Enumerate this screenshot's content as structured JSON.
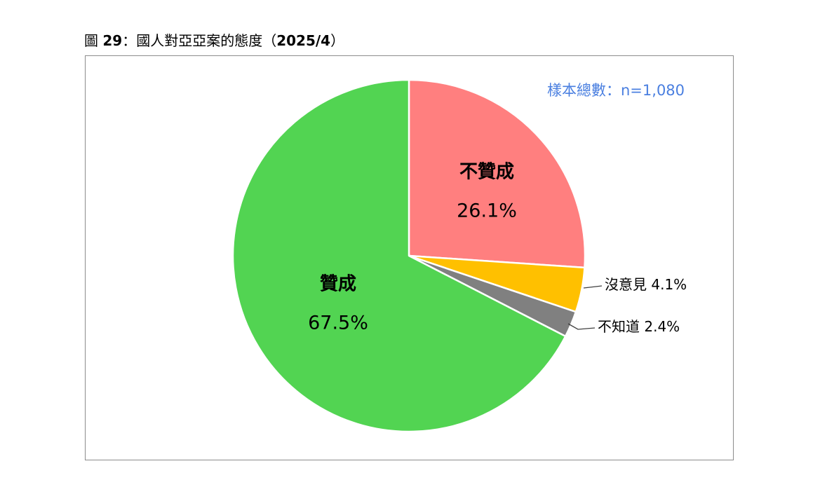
{
  "title": {
    "prefix": "圖",
    "number": "29",
    "colon": "：",
    "text": "國人對亞亞案的態度（",
    "date": "2025/4",
    "close": "）"
  },
  "sample_note": "樣本總數：n=1,080",
  "colors": {
    "approve": "#52d452",
    "disapprove": "#ff7f7f",
    "no_opinion": "#ffc000",
    "dont_know": "#808080",
    "note": "#4a7fe0",
    "border": "#8c8c8c"
  },
  "chart_data": {
    "type": "pie",
    "start": "12 o'clock",
    "direction": "clockwise",
    "slices": [
      {
        "label": "不贊成",
        "value": 26.1,
        "display": "26.1%",
        "color": "#ff7f7f"
      },
      {
        "label": "沒意見",
        "value": 4.1,
        "display": "4.1%",
        "color": "#ffc000"
      },
      {
        "label": "不知道",
        "value": 2.4,
        "display": "2.4%",
        "color": "#808080"
      },
      {
        "label": "贊成",
        "value": 67.5,
        "display": "67.5%",
        "color": "#52d452"
      }
    ]
  }
}
